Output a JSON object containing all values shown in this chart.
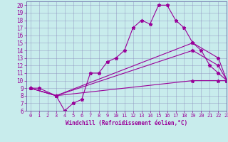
{
  "xlabel": "Windchill (Refroidissement éolien,°C)",
  "background_color": "#c8ecec",
  "line_color": "#990099",
  "xlim": [
    -0.5,
    23
  ],
  "ylim": [
    6,
    20.5
  ],
  "xticks": [
    0,
    1,
    2,
    3,
    4,
    5,
    6,
    7,
    8,
    9,
    10,
    11,
    12,
    13,
    14,
    15,
    16,
    17,
    18,
    19,
    20,
    21,
    22,
    23
  ],
  "yticks": [
    6,
    7,
    8,
    9,
    10,
    11,
    12,
    13,
    14,
    15,
    16,
    17,
    18,
    19,
    20
  ],
  "lines": [
    {
      "x": [
        0,
        1,
        3,
        4,
        5,
        6,
        7,
        8,
        9,
        10,
        11,
        12,
        13,
        14,
        15,
        16,
        17,
        18,
        19,
        20,
        21,
        22,
        23
      ],
      "y": [
        9,
        9,
        8,
        6,
        7,
        7.5,
        11,
        11,
        12.5,
        13,
        14,
        17,
        18,
        17.5,
        20,
        20,
        18,
        17,
        15,
        14,
        12,
        11,
        10
      ]
    },
    {
      "x": [
        0,
        3,
        19,
        22,
        23
      ],
      "y": [
        9,
        8,
        15,
        13,
        10
      ]
    },
    {
      "x": [
        0,
        3,
        19,
        22,
        23
      ],
      "y": [
        9,
        8,
        14,
        12,
        10
      ]
    },
    {
      "x": [
        0,
        3,
        19,
        22,
        23
      ],
      "y": [
        9,
        8,
        10,
        10,
        10
      ]
    }
  ]
}
